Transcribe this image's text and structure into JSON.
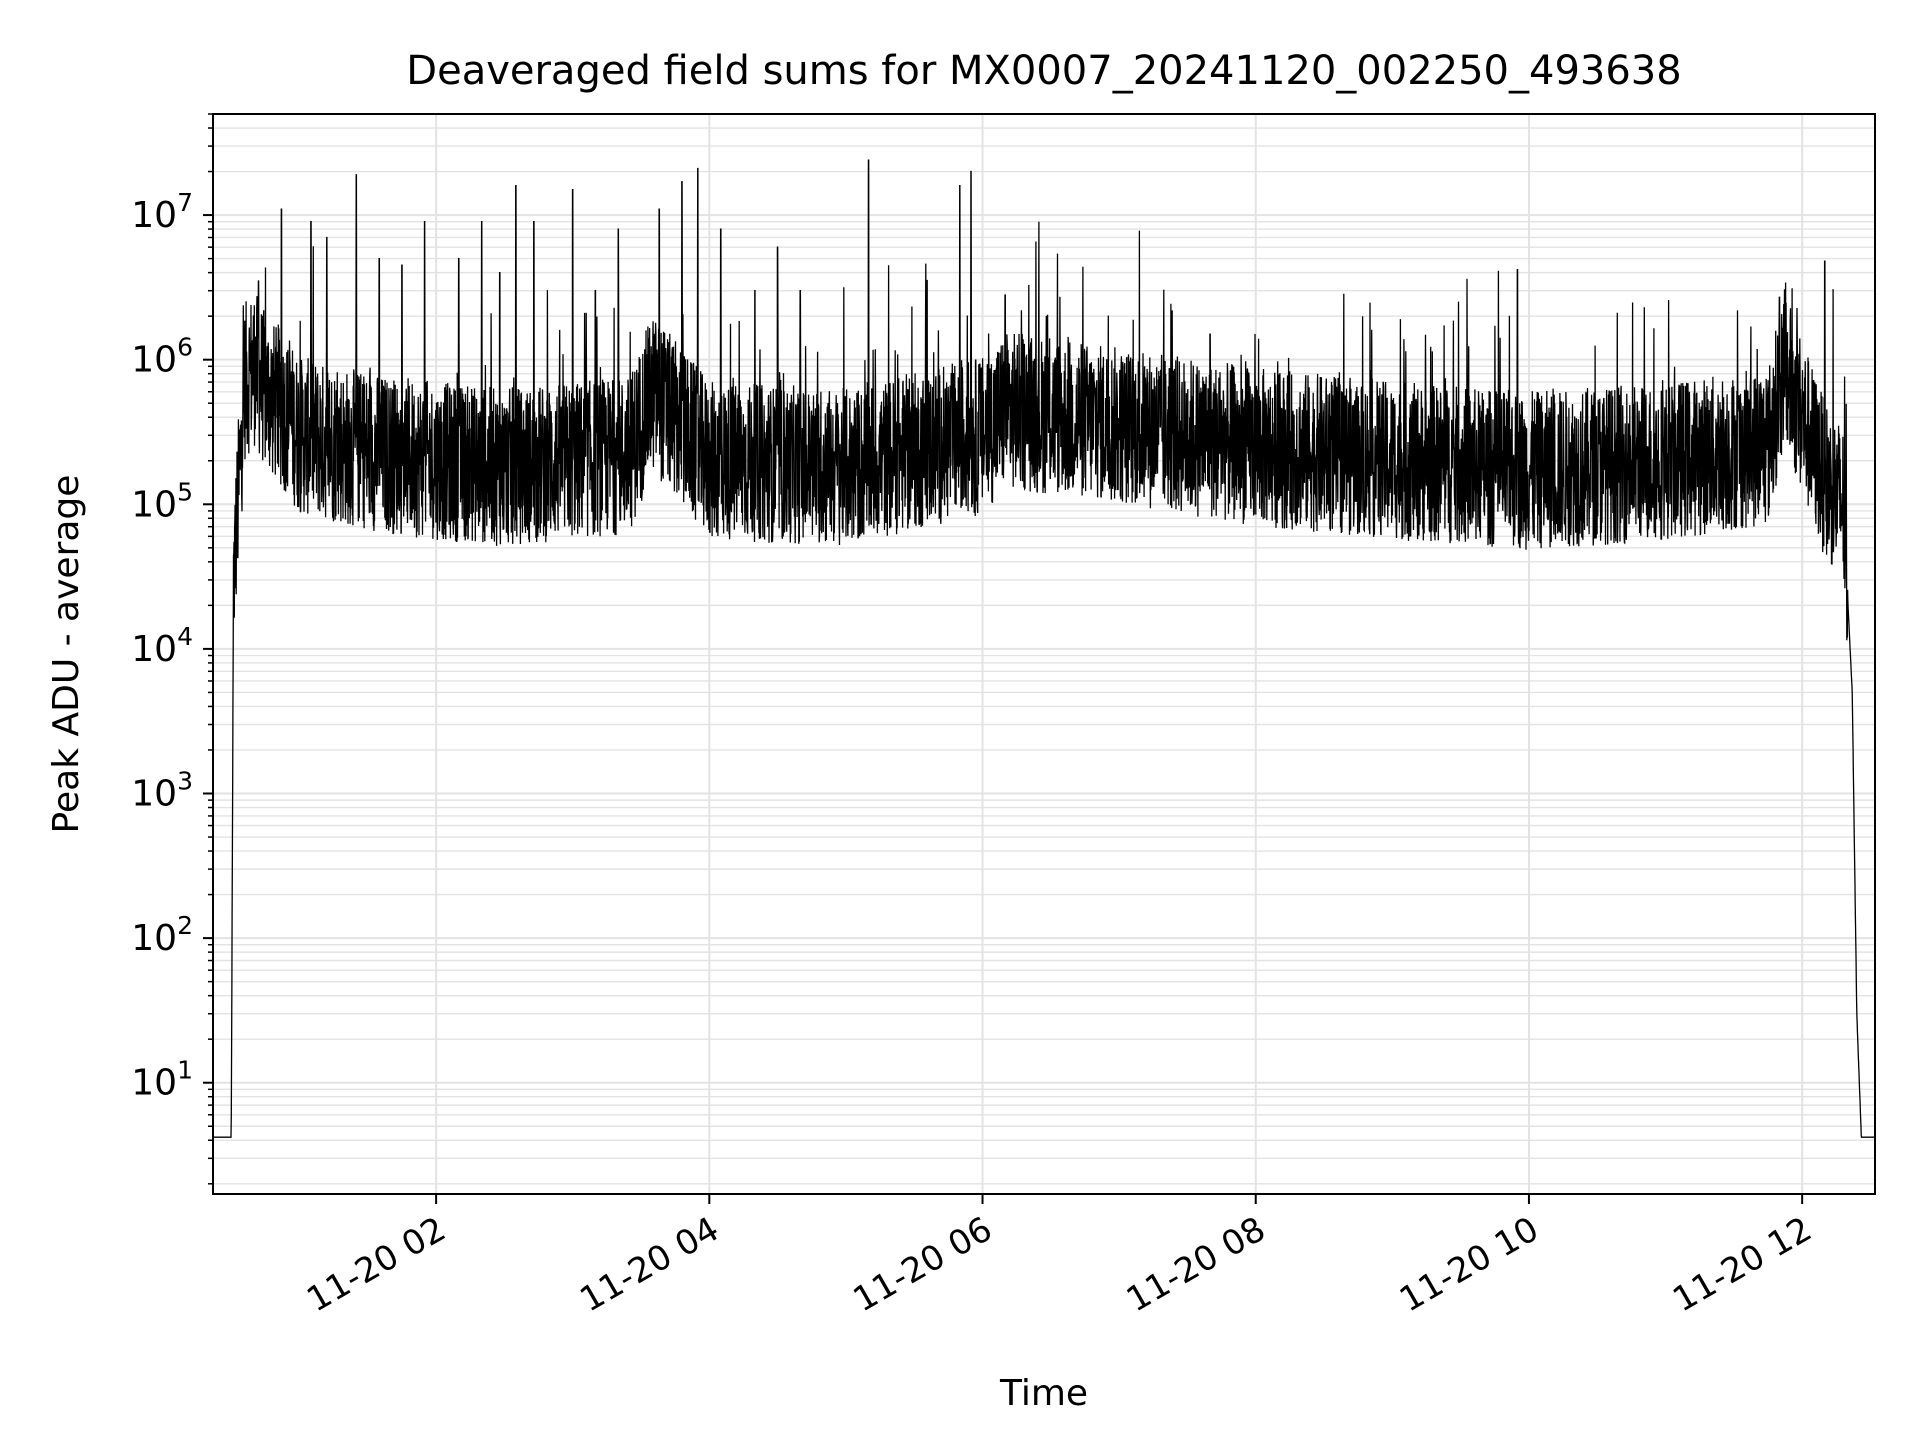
{
  "chart_data": {
    "type": "line",
    "title": "Deaveraged field sums for MX0007_20241120_002250_493638",
    "xlabel": "Time",
    "ylabel": "Peak ADU - average",
    "yscale": "log",
    "ylim": [
      1.7,
      50000000
    ],
    "xlim": [
      "2024-11-20 00:22",
      "2024-11-20 12:32"
    ],
    "grid": true,
    "x_ticks": [
      {
        "time": "2024-11-20 02:00",
        "label": "11-20 02"
      },
      {
        "time": "2024-11-20 04:00",
        "label": "11-20 04"
      },
      {
        "time": "2024-11-20 06:00",
        "label": "11-20 06"
      },
      {
        "time": "2024-11-20 08:00",
        "label": "11-20 08"
      },
      {
        "time": "2024-11-20 10:00",
        "label": "11-20 10"
      },
      {
        "time": "2024-11-20 12:00",
        "label": "11-20 12"
      }
    ],
    "y_ticks": [
      {
        "value": 10,
        "base": "10",
        "exp": "1"
      },
      {
        "value": 100,
        "base": "10",
        "exp": "2"
      },
      {
        "value": 1000,
        "base": "10",
        "exp": "3"
      },
      {
        "value": 10000,
        "base": "10",
        "exp": "4"
      },
      {
        "value": 100000,
        "base": "10",
        "exp": "5"
      },
      {
        "value": 1000000,
        "base": "10",
        "exp": "6"
      },
      {
        "value": 10000000,
        "base": "10",
        "exp": "7"
      }
    ],
    "line_color": "#000000",
    "grid_color": "#e3e3e3",
    "series": [
      {
        "x": [
          "2024-11-20 00:22",
          "2024-11-20 00:30",
          "2024-11-20 00:31",
          "2024-11-20 00:36",
          "2024-11-20 00:40",
          "2024-11-20 00:45",
          "2024-11-20 00:55",
          "2024-11-20 01:00",
          "2024-11-20 01:20",
          "2024-11-20 01:40",
          "2024-11-20 02:00",
          "2024-11-20 02:30",
          "2024-11-20 03:00",
          "2024-11-20 03:25",
          "2024-11-20 03:35",
          "2024-11-20 04:00",
          "2024-11-20 05:00",
          "2024-11-20 06:00",
          "2024-11-20 06:10",
          "2024-11-20 07:00",
          "2024-11-20 08:00",
          "2024-11-20 09:00",
          "2024-11-20 10:00",
          "2024-11-20 11:00",
          "2024-11-20 11:45",
          "2024-11-20 11:52",
          "2024-11-20 12:00",
          "2024-11-20 12:10",
          "2024-11-20 12:18",
          "2024-11-20 12:22",
          "2024-11-20 12:24",
          "2024-11-20 12:26",
          "2024-11-20 12:32"
        ],
        "y": [
          4.2,
          4.2,
          30000,
          700000,
          900000,
          600000,
          400000,
          300000,
          250000,
          220000,
          200000,
          180000,
          200000,
          220000,
          600000,
          200000,
          180000,
          300000,
          450000,
          350000,
          250000,
          200000,
          170000,
          200000,
          250000,
          900000,
          400000,
          150000,
          100000,
          5000,
          30,
          4.2,
          4.2
        ]
      }
    ],
    "spikes": [
      {
        "x": "2024-11-20 00:42",
        "y": 3500000
      },
      {
        "x": "2024-11-20 00:52",
        "y": 11000000
      },
      {
        "x": "2024-11-20 01:05",
        "y": 9000000
      },
      {
        "x": "2024-11-20 01:12",
        "y": 7000000
      },
      {
        "x": "2024-11-20 01:25",
        "y": 19000000
      },
      {
        "x": "2024-11-20 01:35",
        "y": 5000000
      },
      {
        "x": "2024-11-20 01:45",
        "y": 4500000
      },
      {
        "x": "2024-11-20 01:55",
        "y": 9000000
      },
      {
        "x": "2024-11-20 02:10",
        "y": 5000000
      },
      {
        "x": "2024-11-20 02:20",
        "y": 9000000
      },
      {
        "x": "2024-11-20 02:28",
        "y": 4000000
      },
      {
        "x": "2024-11-20 02:35",
        "y": 16000000
      },
      {
        "x": "2024-11-20 02:43",
        "y": 9000000
      },
      {
        "x": "2024-11-20 03:00",
        "y": 15000000
      },
      {
        "x": "2024-11-20 03:10",
        "y": 3000000
      },
      {
        "x": "2024-11-20 03:20",
        "y": 8000000
      },
      {
        "x": "2024-11-20 03:38",
        "y": 11000000
      },
      {
        "x": "2024-11-20 03:48",
        "y": 17000000
      },
      {
        "x": "2024-11-20 03:55",
        "y": 21000000
      },
      {
        "x": "2024-11-20 04:05",
        "y": 8000000
      },
      {
        "x": "2024-11-20 04:20",
        "y": 3000000
      },
      {
        "x": "2024-11-20 04:30",
        "y": 6000000
      },
      {
        "x": "2024-11-20 04:40",
        "y": 3000000
      },
      {
        "x": "2024-11-20 05:10",
        "y": 24000000
      },
      {
        "x": "2024-11-20 05:50",
        "y": 16000000
      },
      {
        "x": "2024-11-20 05:55",
        "y": 20000000
      },
      {
        "x": "2024-11-20 06:10",
        "y": 2800000
      },
      {
        "x": "2024-11-20 07:40",
        "y": 1500000
      },
      {
        "x": "2024-11-20 09:55",
        "y": 4200000
      },
      {
        "x": "2024-11-20 11:50",
        "y": 2700000
      },
      {
        "x": "2024-11-20 12:10",
        "y": 4800000
      }
    ]
  }
}
